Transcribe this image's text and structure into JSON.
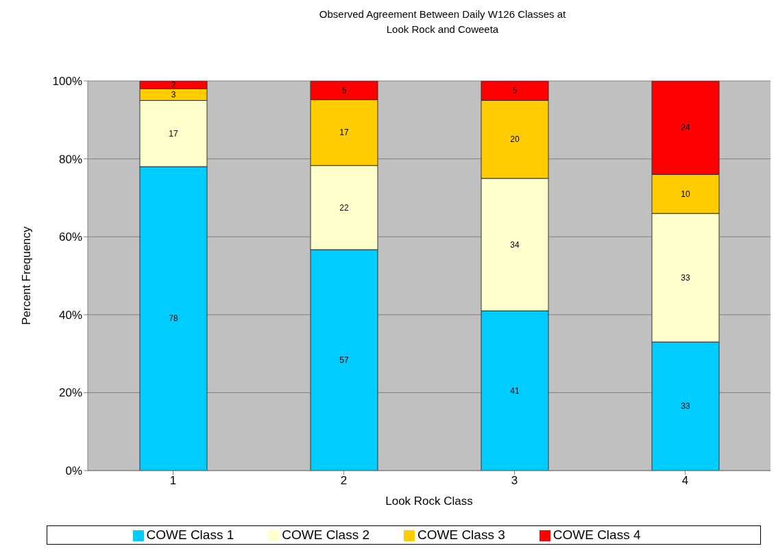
{
  "chart_data": {
    "type": "bar",
    "stacked": true,
    "title": "Observed Agreement Between Daily W126 Classes at\nLook Rock and Coweeta",
    "xlabel": "Look Rock Class",
    "ylabel": "Percent Frequency",
    "categories": [
      "1",
      "2",
      "3",
      "4"
    ],
    "series": [
      {
        "name": "COWE Class 1",
        "color": "#00ccff",
        "values": [
          78,
          56.7,
          41,
          33
        ],
        "value_labels": [
          "78",
          "57",
          "41",
          "33"
        ]
      },
      {
        "name": "COWE Class 2",
        "color": "#ffffcc",
        "values": [
          17,
          21.6,
          34,
          33
        ],
        "value_labels": [
          "17",
          "22",
          "34",
          "33"
        ]
      },
      {
        "name": "COWE Class 3",
        "color": "#ffcc00",
        "values": [
          3,
          16.9,
          20,
          10
        ],
        "value_labels": [
          "3",
          "17",
          "20",
          "10"
        ]
      },
      {
        "name": "COWE Class 4",
        "color": "#ff0000",
        "values": [
          2,
          4.8,
          5,
          24
        ],
        "value_labels": [
          "2",
          "5",
          "5",
          "24"
        ]
      }
    ],
    "ylim": [
      0,
      100
    ],
    "yticks": [
      {
        "value": 0,
        "label": "0%"
      },
      {
        "value": 20,
        "label": "20%"
      },
      {
        "value": 40,
        "label": "40%"
      },
      {
        "value": 60,
        "label": "60%"
      },
      {
        "value": 80,
        "label": "80%"
      },
      {
        "value": 100,
        "label": "100%"
      }
    ],
    "grid": "y",
    "legend": "bottom"
  }
}
